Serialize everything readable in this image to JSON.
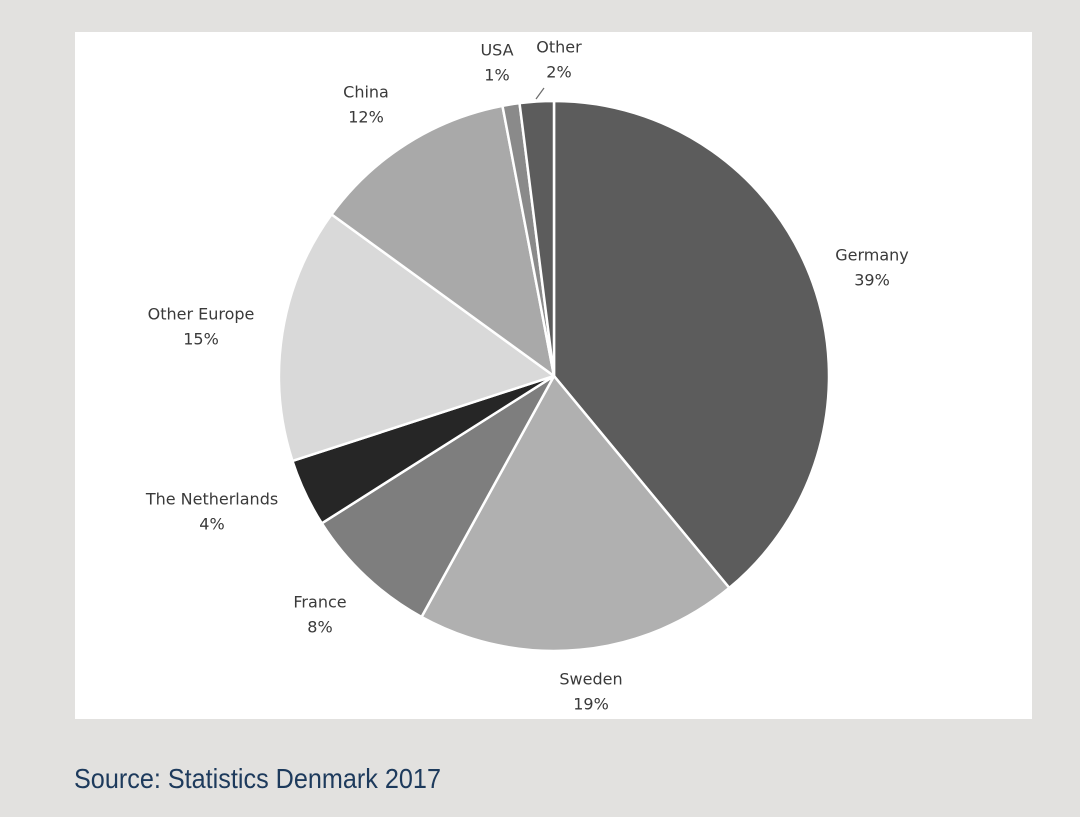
{
  "chart_data": {
    "type": "pie",
    "slices": [
      {
        "label": "Germany",
        "value": 39,
        "value_label": "39%",
        "color": "#5c5c5c"
      },
      {
        "label": "Sweden",
        "value": 19,
        "value_label": "19%",
        "color": "#b0b0b0"
      },
      {
        "label": "France",
        "value": 8,
        "value_label": "8%",
        "color": "#7e7e7e"
      },
      {
        "label": "The Netherlands",
        "value": 4,
        "value_label": "4%",
        "color": "#262626"
      },
      {
        "label": "Other Europe",
        "value": 15,
        "value_label": "15%",
        "color": "#d9d9d9"
      },
      {
        "label": "China",
        "value": 12,
        "value_label": "12%",
        "color": "#a9a9a9"
      },
      {
        "label": "USA",
        "value": 1,
        "value_label": "1%",
        "color": "#8a8a8a"
      },
      {
        "label": "Other",
        "value": 2,
        "value_label": "2%",
        "color": "#5c5c5c"
      }
    ],
    "start": "12 o'clock",
    "direction": "clockwise",
    "legend": "none"
  },
  "source": "Source: Statistics Denmark 2017"
}
